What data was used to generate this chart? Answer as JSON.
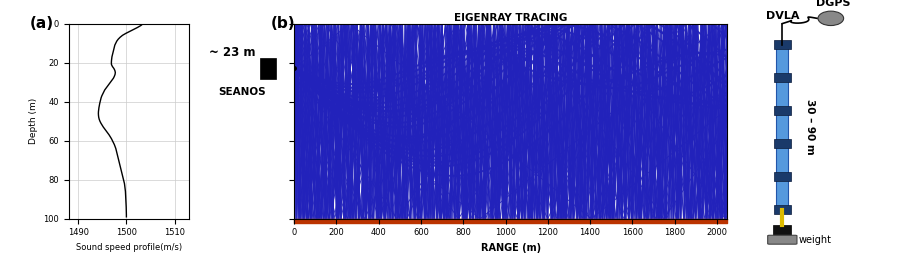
{
  "fig_width": 9.15,
  "fig_height": 2.62,
  "dpi": 100,
  "panel_a": {
    "label": "(a)",
    "xlabel": "Sound speed profile(m/s)",
    "ylabel": "Depth (m)",
    "xlim": [
      1488,
      1513
    ],
    "ylim": [
      100,
      0
    ],
    "xticks": [
      1490,
      1500,
      1510
    ],
    "yticks": [
      0,
      20,
      40,
      60,
      80,
      100
    ],
    "sound_speed": [
      1503.5,
      1503.0,
      1502.3,
      1501.5,
      1500.7,
      1499.9,
      1499.2,
      1498.7,
      1498.3,
      1498.0,
      1497.8,
      1497.6,
      1497.5,
      1497.4,
      1497.3,
      1497.2,
      1497.1,
      1497.0,
      1496.95,
      1496.9,
      1496.88,
      1496.9,
      1497.1,
      1497.4,
      1497.6,
      1497.7,
      1497.65,
      1497.5,
      1497.3,
      1497.0,
      1496.7,
      1496.4,
      1496.1,
      1495.8,
      1495.5,
      1495.3,
      1495.1,
      1494.9,
      1494.75,
      1494.65,
      1494.55,
      1494.45,
      1494.38,
      1494.3,
      1494.25,
      1494.2,
      1494.18,
      1494.2,
      1494.25,
      1494.35,
      1494.5,
      1494.7,
      1494.95,
      1495.2,
      1495.5,
      1495.8,
      1496.1,
      1496.4,
      1496.65,
      1496.9,
      1497.1,
      1497.3,
      1497.5,
      1497.65,
      1497.8,
      1497.9,
      1498.0,
      1498.1,
      1498.2,
      1498.3,
      1498.4,
      1498.5,
      1498.6,
      1498.7,
      1498.8,
      1498.9,
      1499.0,
      1499.1,
      1499.2,
      1499.3,
      1499.4,
      1499.5,
      1499.6,
      1499.65,
      1499.7,
      1499.75,
      1499.8,
      1499.82,
      1499.84,
      1499.86,
      1499.88,
      1499.9,
      1499.92,
      1499.94,
      1499.96,
      1499.97,
      1499.98,
      1499.99,
      1500.0,
      1500.0
    ],
    "depth": [
      0,
      1,
      2,
      3,
      4,
      5,
      6,
      7,
      8,
      9,
      10,
      11,
      12,
      13,
      14,
      15,
      16,
      17,
      18,
      19,
      20,
      21,
      22,
      23,
      24,
      25,
      26,
      27,
      28,
      29,
      30,
      31,
      32,
      33,
      34,
      35,
      36,
      37,
      38,
      39,
      40,
      41,
      42,
      43,
      44,
      45,
      46,
      47,
      48,
      49,
      50,
      51,
      52,
      53,
      54,
      55,
      56,
      57,
      58,
      59,
      60,
      61,
      62,
      63,
      64,
      65,
      66,
      67,
      68,
      69,
      70,
      71,
      72,
      73,
      74,
      75,
      76,
      77,
      78,
      79,
      80,
      81,
      82,
      83,
      84,
      85,
      86,
      87,
      88,
      89,
      90,
      91,
      92,
      93,
      94,
      95,
      96,
      97,
      98,
      99
    ]
  },
  "panel_b": {
    "label": "(b)",
    "title": "EIGENRAY TRACING",
    "xlabel": "RANGE (m)",
    "xlim": [
      0,
      2050
    ],
    "ylim": [
      100,
      0
    ],
    "xticks": [
      0,
      200,
      400,
      600,
      800,
      1000,
      1200,
      1400,
      1600,
      1800,
      2000
    ],
    "yticks": [
      0,
      20,
      40,
      60,
      80,
      100
    ],
    "ray_color": "#2222bb",
    "bottom_color": "#bb3300",
    "source_depth": 23,
    "water_depth": 100,
    "max_range": 2050
  },
  "annotation_23m": "~ 23 m",
  "annotation_seanos": "SEANOS",
  "annotation_dvla": "DVLA",
  "annotation_dgps": "DGPS",
  "annotation_depth_range": "30 – 90 m",
  "annotation_weight": "weight",
  "bg_color": "#ffffff",
  "grid_color": "#cccccc"
}
